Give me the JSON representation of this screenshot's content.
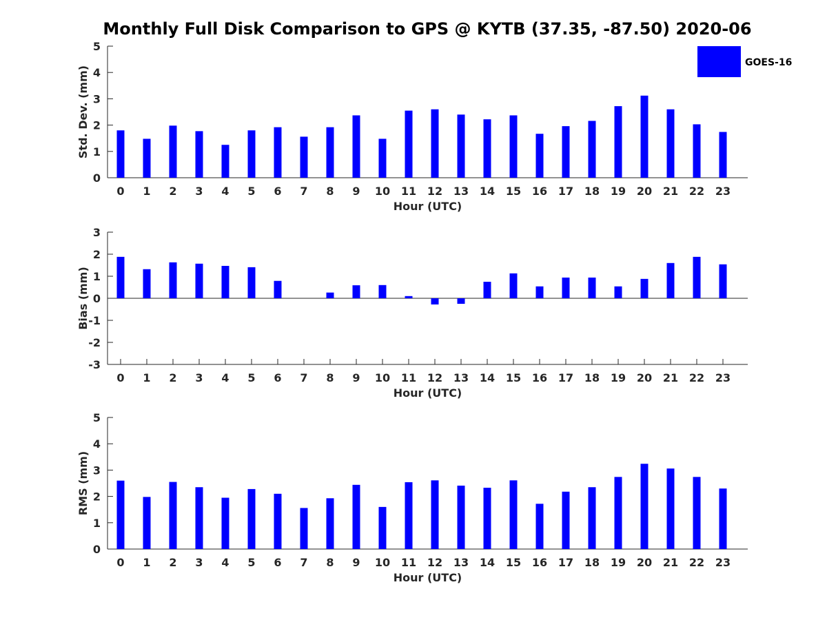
{
  "title": "Monthly Full Disk Comparison to GPS @ KYTB (37.35, -87.50) 2020-06",
  "series_color": "#0000ff",
  "legend": {
    "label": "GOES-16",
    "placement": "top-right"
  },
  "chart_data": [
    {
      "type": "bar",
      "series_name": "GOES-16",
      "xlabel": "Hour (UTC)",
      "ylabel": "Std. Dev. (mm)",
      "ylim": [
        0,
        5
      ],
      "yticks": [
        0,
        1,
        2,
        3,
        4,
        5
      ],
      "categories": [
        "0",
        "1",
        "2",
        "3",
        "4",
        "5",
        "6",
        "7",
        "8",
        "9",
        "10",
        "11",
        "12",
        "13",
        "14",
        "15",
        "16",
        "17",
        "18",
        "19",
        "20",
        "21",
        "22",
        "23"
      ],
      "values": [
        1.8,
        1.48,
        1.98,
        1.77,
        1.25,
        1.8,
        1.92,
        1.56,
        1.92,
        2.37,
        1.48,
        2.55,
        2.6,
        2.4,
        2.22,
        2.37,
        1.67,
        1.96,
        2.16,
        2.72,
        3.12,
        2.6,
        2.03,
        1.74
      ]
    },
    {
      "type": "bar",
      "series_name": "GOES-16",
      "xlabel": "Hour (UTC)",
      "ylabel": "Bias (mm)",
      "ylim": [
        -3,
        3
      ],
      "yticks": [
        -3,
        -2,
        -1,
        0,
        1,
        2,
        3
      ],
      "categories": [
        "0",
        "1",
        "2",
        "3",
        "4",
        "5",
        "6",
        "7",
        "8",
        "9",
        "10",
        "11",
        "12",
        "13",
        "14",
        "15",
        "16",
        "17",
        "18",
        "19",
        "20",
        "21",
        "22",
        "23"
      ],
      "values": [
        1.88,
        1.32,
        1.63,
        1.57,
        1.47,
        1.41,
        0.79,
        0,
        0.26,
        0.59,
        0.6,
        0.1,
        -0.28,
        -0.25,
        0.75,
        1.13,
        0.54,
        0.94,
        0.94,
        0.54,
        0.88,
        1.6,
        1.88,
        1.54
      ]
    },
    {
      "type": "bar",
      "series_name": "GOES-16",
      "xlabel": "Hour (UTC)",
      "ylabel": "RMS (mm)",
      "ylim": [
        0,
        5
      ],
      "yticks": [
        0,
        1,
        2,
        3,
        4,
        5
      ],
      "categories": [
        "0",
        "1",
        "2",
        "3",
        "4",
        "5",
        "6",
        "7",
        "8",
        "9",
        "10",
        "11",
        "12",
        "13",
        "14",
        "15",
        "16",
        "17",
        "18",
        "19",
        "20",
        "21",
        "22",
        "23"
      ],
      "values": [
        2.6,
        1.98,
        2.55,
        2.35,
        1.95,
        2.28,
        2.1,
        1.56,
        1.93,
        2.44,
        1.6,
        2.54,
        2.61,
        2.41,
        2.33,
        2.61,
        1.72,
        2.18,
        2.35,
        2.74,
        3.24,
        3.06,
        2.74,
        2.3
      ]
    }
  ]
}
